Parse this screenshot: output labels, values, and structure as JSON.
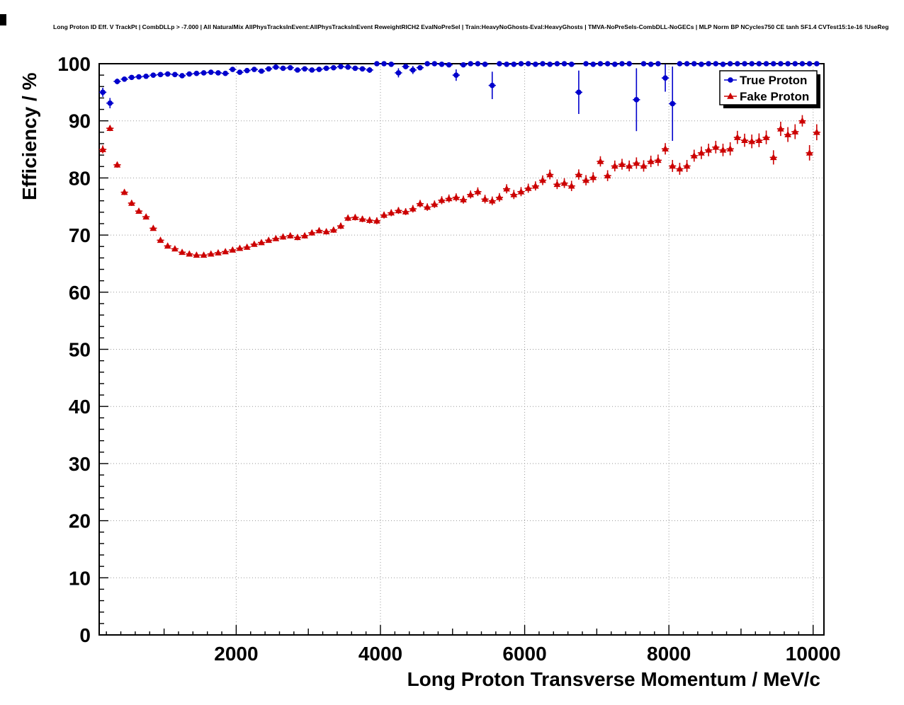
{
  "window": {
    "background": "#ffffff"
  },
  "header": {
    "title": "Long Proton ID Eff. V TrackPt | CombDLLp > -7.000 | All NaturalMix AllPhysTracksInEvent:AllPhysTracksInEvent ReweightRICH2 EvalNoPreSel | Train:HeavyNoGhosts-Eval:HeavyGhosts | TMVA-NoPreSels-CombDLL-NoGECs | MLP Norm BP NCycles750 CE tanh SF1.4 CVTest15:1e-16 !UseReg"
  },
  "chart_data": {
    "type": "scatter",
    "title": "Long Proton ID Eff. V TrackPt | CombDLLp > -7.000 | All NaturalMix AllPhysTracksInEvent:AllPhysTracksInEvent ReweightRICH2 EvalNoPreSel | Train:HeavyNoGhosts-Eval:HeavyGhosts | TMVA-NoPreSels-CombDLL-NoGECs | MLP Norm BP NCycles750 CE tanh SF1.4 CVTest15:1e-16 !UseReg",
    "xlabel": "Long Proton Transverse Momentum / MeV/c",
    "ylabel": "Efficiency / %",
    "xlim": [
      100,
      10150
    ],
    "ylim": [
      0,
      100
    ],
    "x_ticks": [
      2000,
      4000,
      6000,
      8000,
      10000
    ],
    "y_ticks": [
      0,
      10,
      20,
      30,
      40,
      50,
      60,
      70,
      80,
      90,
      100
    ],
    "grid": true,
    "grid_style": "dotted",
    "x_bin_halfwidth": 50,
    "colors": {
      "true_proton": "#0000cc",
      "fake_proton": "#cc0000",
      "frame": "#000000",
      "grid": "#999999"
    },
    "legend": {
      "position": "top-right",
      "entries": [
        {
          "label": "True Proton",
          "marker": "circle",
          "color": "#0000cc"
        },
        {
          "label": "Fake Proton",
          "marker": "triangle",
          "color": "#cc0000"
        }
      ]
    },
    "series": [
      {
        "name": "True Proton",
        "marker": "circle",
        "color": "#0000cc",
        "points": [
          [
            150,
            95,
            0.8
          ],
          [
            250,
            93.1,
            0.9
          ],
          [
            350,
            96.9,
            0.5
          ],
          [
            450,
            97.3,
            0.4
          ],
          [
            550,
            97.6,
            0.4
          ],
          [
            650,
            97.7,
            0.3
          ],
          [
            750,
            97.8,
            0.3
          ],
          [
            850,
            98,
            0.3
          ],
          [
            950,
            98.1,
            0.3
          ],
          [
            1050,
            98.2,
            0.3
          ],
          [
            1150,
            98.1,
            0.3
          ],
          [
            1250,
            97.9,
            0.3
          ],
          [
            1350,
            98.2,
            0.3
          ],
          [
            1450,
            98.3,
            0.3
          ],
          [
            1550,
            98.4,
            0.25
          ],
          [
            1650,
            98.5,
            0.25
          ],
          [
            1750,
            98.4,
            0.25
          ],
          [
            1850,
            98.3,
            0.3
          ],
          [
            1950,
            99,
            0.2
          ],
          [
            2050,
            98.5,
            0.3
          ],
          [
            2150,
            98.8,
            0.25
          ],
          [
            2250,
            99,
            0.2
          ],
          [
            2350,
            98.7,
            0.3
          ],
          [
            2450,
            99.1,
            0.2
          ],
          [
            2550,
            99.4,
            0.2
          ],
          [
            2650,
            99.2,
            0.2
          ],
          [
            2750,
            99.3,
            0.2
          ],
          [
            2850,
            98.9,
            0.3
          ],
          [
            2950,
            99.1,
            0.25
          ],
          [
            3050,
            98.9,
            0.3
          ],
          [
            3150,
            99,
            0.3
          ],
          [
            3250,
            99.2,
            0.25
          ],
          [
            3350,
            99.3,
            0.2
          ],
          [
            3450,
            99.5,
            0.2
          ],
          [
            3550,
            99.4,
            0.2
          ],
          [
            3650,
            99.2,
            0.3
          ],
          [
            3750,
            99.1,
            0.4
          ],
          [
            3850,
            98.9,
            0.5
          ],
          [
            3950,
            100,
            0.1
          ],
          [
            4050,
            100,
            0.1
          ],
          [
            4150,
            99.9,
            0.1
          ],
          [
            4250,
            98.4,
            0.8
          ],
          [
            4350,
            99.5,
            0.3
          ],
          [
            4450,
            98.9,
            0.7
          ],
          [
            4550,
            99.3,
            0.4
          ],
          [
            4650,
            100,
            0.1
          ],
          [
            4750,
            100,
            0.1
          ],
          [
            4850,
            99.9,
            0.2
          ],
          [
            4950,
            99.8,
            0.2
          ],
          [
            5050,
            98,
            1
          ],
          [
            5150,
            99.8,
            0.2
          ],
          [
            5250,
            100,
            0.1
          ],
          [
            5350,
            100,
            0.1
          ],
          [
            5450,
            99.9,
            0.2
          ],
          [
            5550,
            96.2,
            2.4
          ],
          [
            5650,
            100,
            0.1
          ],
          [
            5750,
            99.9,
            0.2
          ],
          [
            5850,
            99.9,
            0.2
          ],
          [
            5950,
            100,
            0.1
          ],
          [
            6050,
            100,
            0.1
          ],
          [
            6150,
            99.9,
            0.2
          ],
          [
            6250,
            100,
            0.1
          ],
          [
            6350,
            99.9,
            0.2
          ],
          [
            6450,
            100,
            0.1
          ],
          [
            6550,
            100,
            0.1
          ],
          [
            6650,
            99.9,
            0.2
          ],
          [
            6750,
            95,
            3.8
          ],
          [
            6850,
            100,
            0.1
          ],
          [
            6950,
            99.9,
            0.2
          ],
          [
            7050,
            100,
            0.1
          ],
          [
            7150,
            100,
            0.1
          ],
          [
            7250,
            99.9,
            0.2
          ],
          [
            7350,
            100,
            0.1
          ],
          [
            7450,
            100,
            0.1
          ],
          [
            7550,
            93.7,
            5.5
          ],
          [
            7650,
            100,
            0.1
          ],
          [
            7750,
            99.9,
            0.2
          ],
          [
            7850,
            100,
            0.1
          ],
          [
            7950,
            97.5,
            2.4
          ],
          [
            8050,
            93,
            6.5
          ],
          [
            8150,
            100,
            0.1
          ],
          [
            8250,
            100,
            0.1
          ],
          [
            8350,
            100,
            0.1
          ],
          [
            8450,
            99.9,
            0.2
          ],
          [
            8550,
            100,
            0.1
          ],
          [
            8650,
            100,
            0.1
          ],
          [
            8750,
            99.9,
            0.2
          ],
          [
            8850,
            100,
            0.1
          ],
          [
            8950,
            100,
            0.1
          ],
          [
            9050,
            100,
            0.1
          ],
          [
            9150,
            100,
            0.1
          ],
          [
            9250,
            100,
            0.1
          ],
          [
            9350,
            100,
            0.1
          ],
          [
            9450,
            100,
            0.1
          ],
          [
            9550,
            100,
            0.1
          ],
          [
            9650,
            100,
            0.1
          ],
          [
            9750,
            100,
            0.1
          ],
          [
            9850,
            100,
            0.1
          ],
          [
            9950,
            100,
            0.1
          ],
          [
            10050,
            100,
            0.1
          ]
        ]
      },
      {
        "name": "Fake Proton",
        "marker": "triangle",
        "color": "#cc0000",
        "points": [
          [
            150,
            85,
            0.7
          ],
          [
            250,
            88.7,
            0.5
          ],
          [
            350,
            82.3,
            0.5
          ],
          [
            450,
            77.5,
            0.5
          ],
          [
            550,
            75.6,
            0.5
          ],
          [
            650,
            74.2,
            0.4
          ],
          [
            750,
            73.2,
            0.4
          ],
          [
            850,
            71.2,
            0.4
          ],
          [
            950,
            69.1,
            0.4
          ],
          [
            1050,
            68.1,
            0.4
          ],
          [
            1150,
            67.6,
            0.4
          ],
          [
            1250,
            67,
            0.4
          ],
          [
            1350,
            66.7,
            0.4
          ],
          [
            1450,
            66.5,
            0.4
          ],
          [
            1550,
            66.5,
            0.4
          ],
          [
            1650,
            66.7,
            0.4
          ],
          [
            1750,
            66.9,
            0.4
          ],
          [
            1850,
            67.1,
            0.4
          ],
          [
            1950,
            67.4,
            0.4
          ],
          [
            2050,
            67.7,
            0.4
          ],
          [
            2150,
            67.9,
            0.45
          ],
          [
            2250,
            68.4,
            0.45
          ],
          [
            2350,
            68.7,
            0.45
          ],
          [
            2450,
            69.1,
            0.45
          ],
          [
            2550,
            69.4,
            0.45
          ],
          [
            2650,
            69.7,
            0.5
          ],
          [
            2750,
            69.9,
            0.5
          ],
          [
            2850,
            69.6,
            0.5
          ],
          [
            2950,
            69.9,
            0.5
          ],
          [
            3050,
            70.4,
            0.5
          ],
          [
            3150,
            70.8,
            0.5
          ],
          [
            3250,
            70.6,
            0.5
          ],
          [
            3350,
            70.9,
            0.5
          ],
          [
            3450,
            71.6,
            0.55
          ],
          [
            3550,
            73,
            0.55
          ],
          [
            3650,
            73.1,
            0.55
          ],
          [
            3750,
            72.8,
            0.55
          ],
          [
            3850,
            72.6,
            0.6
          ],
          [
            3950,
            72.5,
            0.6
          ],
          [
            4050,
            73.5,
            0.6
          ],
          [
            4150,
            73.9,
            0.6
          ],
          [
            4250,
            74.3,
            0.6
          ],
          [
            4350,
            74.1,
            0.6
          ],
          [
            4450,
            74.6,
            0.65
          ],
          [
            4550,
            75.5,
            0.65
          ],
          [
            4650,
            74.9,
            0.65
          ],
          [
            4750,
            75.4,
            0.65
          ],
          [
            4850,
            76.1,
            0.7
          ],
          [
            4950,
            76.4,
            0.7
          ],
          [
            5050,
            76.6,
            0.7
          ],
          [
            5150,
            76.2,
            0.7
          ],
          [
            5250,
            77.1,
            0.7
          ],
          [
            5350,
            77.6,
            0.75
          ],
          [
            5450,
            76.3,
            0.75
          ],
          [
            5550,
            76,
            0.75
          ],
          [
            5650,
            76.6,
            0.75
          ],
          [
            5750,
            78.1,
            0.8
          ],
          [
            5850,
            77.1,
            0.8
          ],
          [
            5950,
            77.6,
            0.8
          ],
          [
            6050,
            78.2,
            0.8
          ],
          [
            6150,
            78.6,
            0.8
          ],
          [
            6250,
            79.6,
            0.85
          ],
          [
            6350,
            80.6,
            0.85
          ],
          [
            6450,
            78.9,
            0.85
          ],
          [
            6550,
            79.1,
            0.85
          ],
          [
            6650,
            78.6,
            0.9
          ],
          [
            6750,
            80.6,
            0.9
          ],
          [
            6850,
            79.6,
            0.9
          ],
          [
            6950,
            80.1,
            0.9
          ],
          [
            7050,
            82.9,
            0.9
          ],
          [
            7150,
            80.4,
            0.95
          ],
          [
            7250,
            82.1,
            0.95
          ],
          [
            7350,
            82.4,
            0.95
          ],
          [
            7450,
            82.1,
            0.95
          ],
          [
            7550,
            82.6,
            1
          ],
          [
            7650,
            82.1,
            1
          ],
          [
            7750,
            82.9,
            1
          ],
          [
            7850,
            83.1,
            1
          ],
          [
            7950,
            85.1,
            1
          ],
          [
            8050,
            82.1,
            1.05
          ],
          [
            8150,
            81.6,
            1.05
          ],
          [
            8250,
            82.1,
            1.05
          ],
          [
            8350,
            83.9,
            1.05
          ],
          [
            8450,
            84.4,
            1.1
          ],
          [
            8550,
            84.9,
            1.1
          ],
          [
            8650,
            85.4,
            1.1
          ],
          [
            8750,
            84.9,
            1.1
          ],
          [
            8850,
            85.1,
            1.15
          ],
          [
            8950,
            87.1,
            1.15
          ],
          [
            9050,
            86.6,
            1.15
          ],
          [
            9150,
            86.4,
            1.2
          ],
          [
            9250,
            86.6,
            1.2
          ],
          [
            9350,
            87.1,
            1.2
          ],
          [
            9450,
            83.6,
            1.25
          ],
          [
            9550,
            88.6,
            1.25
          ],
          [
            9650,
            87.6,
            1.3
          ],
          [
            9750,
            88.1,
            1.3
          ],
          [
            9850,
            90,
            1
          ],
          [
            9950,
            84.4,
            1.35
          ],
          [
            10050,
            88,
            1.4
          ]
        ]
      }
    ]
  }
}
